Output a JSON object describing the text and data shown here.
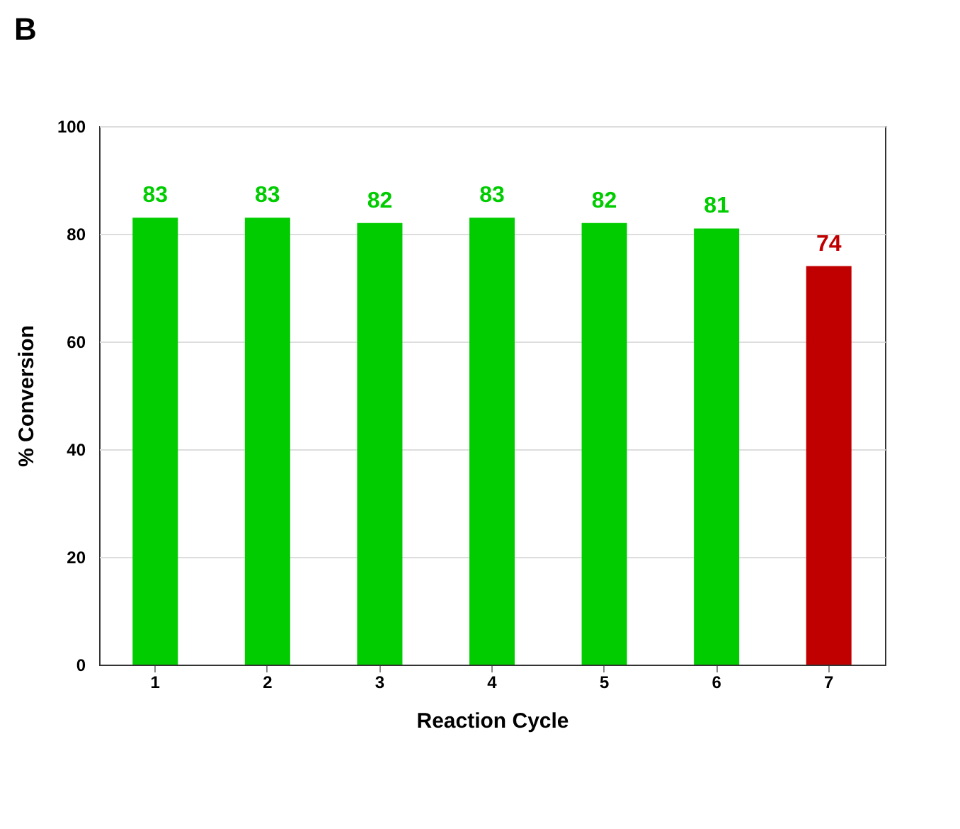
{
  "chart_data": {
    "type": "bar",
    "title": "B",
    "xlabel": "Reaction Cycle",
    "ylabel": "% Conversion",
    "categories": [
      "1",
      "2",
      "3",
      "4",
      "5",
      "6",
      "7"
    ],
    "values": [
      83,
      83,
      82,
      83,
      82,
      81,
      74
    ],
    "colors": [
      "#00cc00",
      "#00cc00",
      "#00cc00",
      "#00cc00",
      "#00cc00",
      "#00cc00",
      "#c00000"
    ],
    "ylim": [
      0,
      100
    ],
    "yticks": [
      0,
      20,
      40,
      60,
      80,
      100
    ],
    "grid": "y",
    "data_labels": true
  }
}
